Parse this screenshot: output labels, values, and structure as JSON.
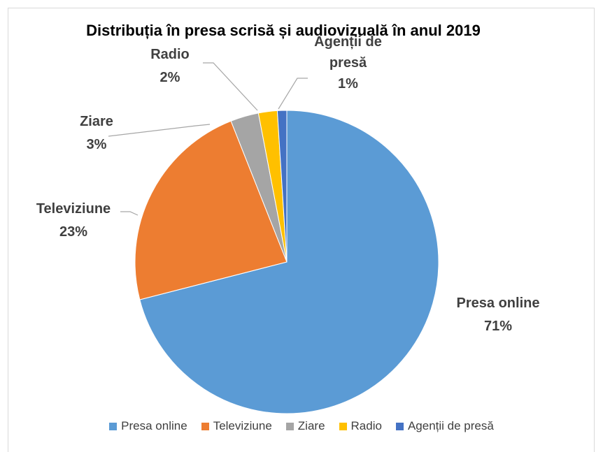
{
  "chart_data": {
    "type": "pie",
    "title": "Distribuția în presa scrisă și audiovizuală în anul 2019",
    "categories": [
      "Presa online",
      "Televiziune",
      "Ziare",
      "Radio",
      "Agenții de presă"
    ],
    "values": [
      71,
      23,
      3,
      2,
      1
    ],
    "value_labels": [
      "71%",
      "23%",
      "3%",
      "2%",
      "1%"
    ],
    "colors": [
      "#5b9bd5",
      "#ed7d31",
      "#a5a5a5",
      "#ffc000",
      "#4472c4"
    ],
    "legend": "bottom"
  }
}
